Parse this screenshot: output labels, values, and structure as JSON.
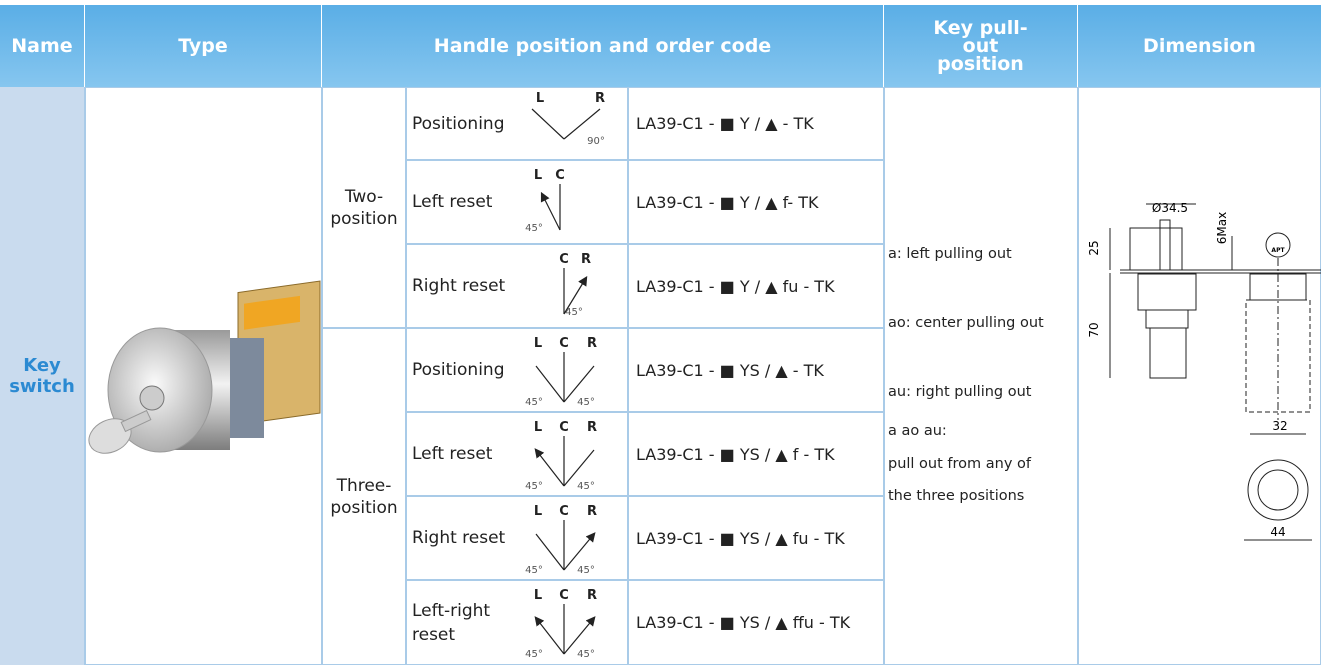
{
  "header": {
    "name": "Name",
    "type": "Type",
    "handle": "Handle position and order code",
    "pullout": "Key pull-out position",
    "dimension": "Dimension"
  },
  "name": "Key switch",
  "groups": [
    {
      "label": "Two-position",
      "rows": [
        {
          "mode": "Positioning",
          "diagram": [
            "L",
            "R",
            "90°"
          ],
          "code": "LA39-C1 - ■ Y / ▲ - TK"
        },
        {
          "mode": "Left reset",
          "diagram": [
            "L",
            "C",
            "45°"
          ],
          "code": "LA39-C1 - ■ Y / ▲ f- TK"
        },
        {
          "mode": "Right reset",
          "diagram": [
            "C",
            "R",
            "45°"
          ],
          "code": "LA39-C1 - ■ Y / ▲ fu - TK"
        }
      ]
    },
    {
      "label": "Three-position",
      "rows": [
        {
          "mode": "Positioning",
          "diagram": [
            "L",
            "C",
            "R",
            "45°",
            "45°"
          ],
          "code": "LA39-C1 - ■ YS / ▲ - TK"
        },
        {
          "mode": "Left reset",
          "diagram": [
            "L",
            "C",
            "R",
            "45°",
            "45°"
          ],
          "code": "LA39-C1 - ■ YS / ▲ f - TK"
        },
        {
          "mode": "Right reset",
          "diagram": [
            "L",
            "C",
            "R",
            "45°",
            "45°"
          ],
          "code": "LA39-C1 - ■ YS / ▲ fu - TK"
        },
        {
          "mode": "Left-right reset",
          "diagram": [
            "L",
            "C",
            "R",
            "45°",
            "45°"
          ],
          "code": "LA39-C1 - ■ YS / ▲ ffu - TK"
        }
      ]
    }
  ],
  "pullout": [
    "a: left pulling out",
    "ao: center pulling out",
    "au: right pulling out",
    "a ao au:",
    "pull out from any of",
    "the three positions"
  ],
  "dimension": {
    "labels": [
      "Ø34.5",
      "6Max",
      "25",
      "70",
      "32",
      "44"
    ],
    "badge": "APT"
  }
}
